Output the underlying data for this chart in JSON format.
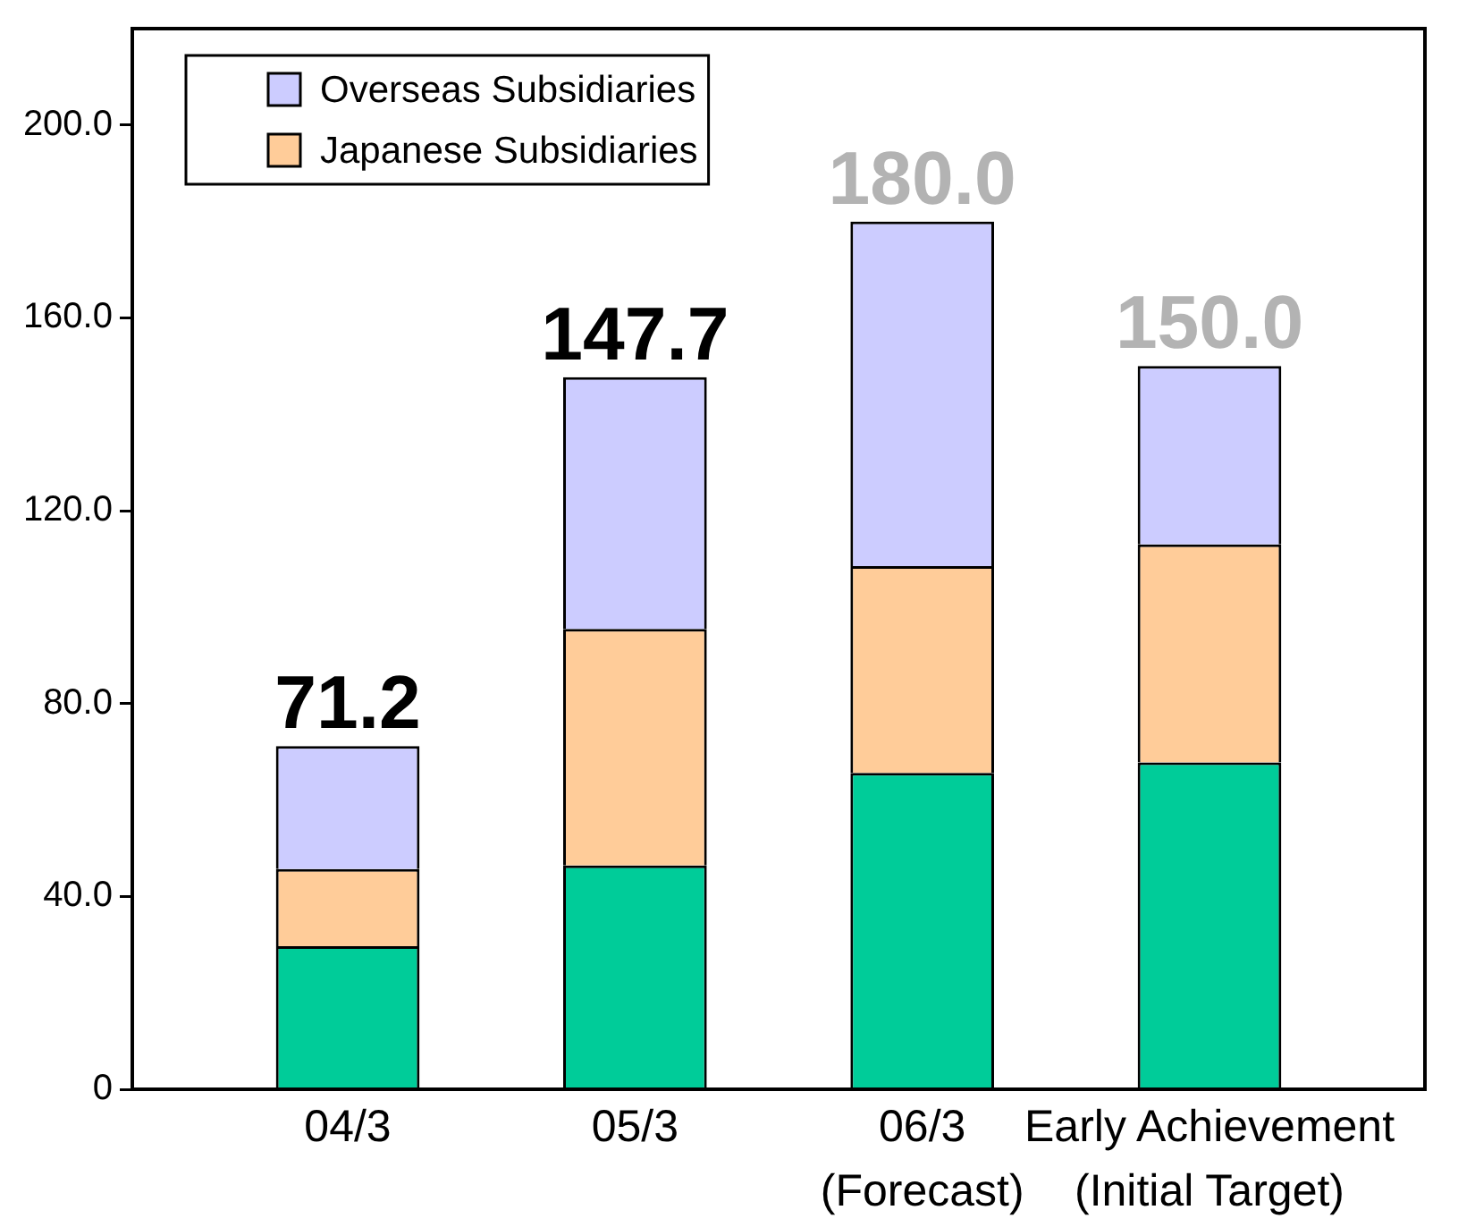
{
  "chart_data": {
    "type": "bar",
    "categories": [
      "04/3",
      "05/3",
      "06/3\n(Forecast)",
      "Early Achievement\n(Initial Target)"
    ],
    "series": [
      {
        "color": "#00cc99",
        "values": [
          29.7,
          46.4,
          65.6,
          67.8
        ]
      },
      {
        "name": "Japanese Subsidiaries",
        "color": "#ffcc99",
        "values": [
          16.0,
          49.1,
          42.9,
          45.2
        ]
      },
      {
        "name": "Overseas Subsidiaries",
        "color": "#ccccff",
        "values": [
          25.5,
          52.2,
          71.5,
          37.0
        ]
      }
    ],
    "stacked": true,
    "ylim": [
      0,
      220
    ],
    "yticks": [
      0,
      {
        "value": 40,
        "label": "40.0"
      },
      {
        "value": 80,
        "label": "80.0"
      },
      {
        "value": 120,
        "label": "120.0"
      },
      {
        "value": 160,
        "label": "160.0"
      },
      {
        "value": 200,
        "label": "200.0"
      }
    ],
    "totals": [
      "71.2",
      "147.7",
      "180.0",
      "150.0"
    ],
    "legend": "top left"
  }
}
